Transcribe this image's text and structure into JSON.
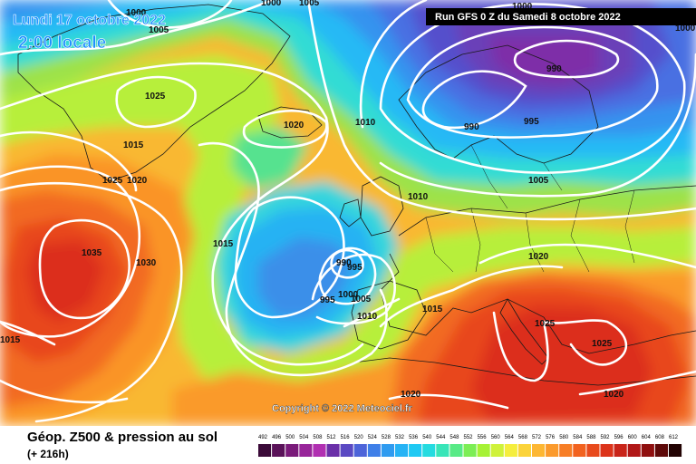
{
  "header": {
    "run_title": "Run GFS 0 Z du Samedi 8 octobre 2022",
    "valid_date": "Lundi 17 octobre 2022",
    "valid_time": "2:00 locale"
  },
  "legend": {
    "title": "Géop. Z500 & pression au sol",
    "lead_time": "(+ 216h)",
    "scale_values": [
      "492",
      "496",
      "500",
      "504",
      "508",
      "512",
      "516",
      "520",
      "524",
      "528",
      "532",
      "536",
      "540",
      "544",
      "548",
      "552",
      "556",
      "560",
      "564",
      "568",
      "572",
      "576",
      "580",
      "584",
      "588",
      "592",
      "596",
      "600",
      "604",
      "608",
      "612"
    ],
    "scale_colors": [
      "#3a0a38",
      "#5a1259",
      "#7a1a7a",
      "#98259a",
      "#b12fb1",
      "#6a2fa8",
      "#5a49c3",
      "#4d64d9",
      "#3f7fe8",
      "#2f9bf0",
      "#26b3f5",
      "#1fc9f3",
      "#24dbe0",
      "#38e5b8",
      "#58ea86",
      "#7cee55",
      "#a6f235",
      "#cff23a",
      "#f5ee3d",
      "#fbd33a",
      "#fdb733",
      "#fb9a2c",
      "#f77e26",
      "#f2621f",
      "#e84a1c",
      "#dc331a",
      "#c92419",
      "#b11818",
      "#8f0f0f",
      "#5e0909",
      "#220303"
    ]
  },
  "isobar_labels": [
    {
      "text": "1000"
    },
    {
      "text": "1005"
    },
    {
      "text": "1000"
    },
    {
      "text": "1005"
    },
    {
      "text": "1025"
    },
    {
      "text": "1015"
    },
    {
      "text": "1020"
    },
    {
      "text": "1025"
    },
    {
      "text": "1020"
    },
    {
      "text": "1010"
    },
    {
      "text": "1010"
    },
    {
      "text": "1035"
    },
    {
      "text": "1030"
    },
    {
      "text": "1015"
    },
    {
      "text": "990"
    },
    {
      "text": "990"
    },
    {
      "text": "995"
    },
    {
      "text": "1005"
    },
    {
      "text": "1000"
    },
    {
      "text": "1000"
    },
    {
      "text": "990"
    },
    {
      "text": "995"
    },
    {
      "text": "995"
    },
    {
      "text": "1000"
    },
    {
      "text": "1005"
    },
    {
      "text": "1010"
    },
    {
      "text": "1015"
    },
    {
      "text": "1020"
    },
    {
      "text": "1025"
    },
    {
      "text": "1025"
    },
    {
      "text": "1020"
    },
    {
      "text": "1020"
    },
    {
      "text": "1015"
    }
  ],
  "copyright": "Copyright © 2022 Meteociel.fr",
  "colors": {
    "background_header": "#000000",
    "isobar": "#ffffff"
  }
}
